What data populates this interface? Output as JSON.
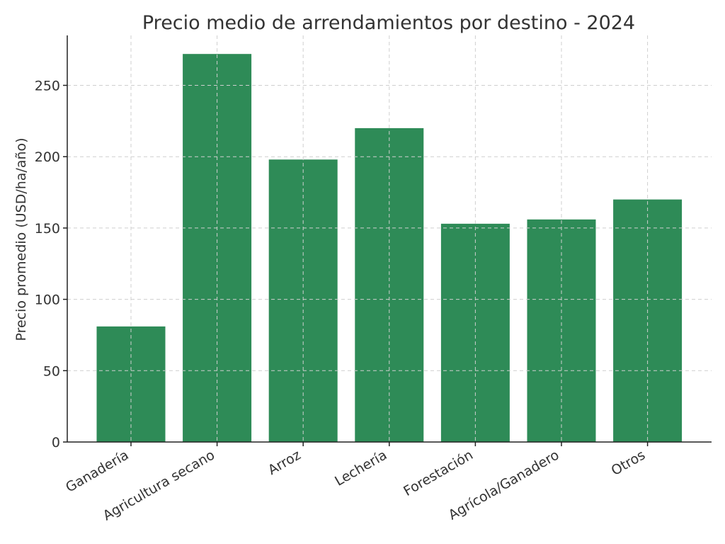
{
  "chart_data": {
    "type": "bar",
    "title": "Precio medio de arrendamientos por destino - 2024",
    "xlabel": "",
    "ylabel": "Precio promedio (USD/ha/año)",
    "categories": [
      "Ganadería",
      "Agricultura secano",
      "Arroz",
      "Lechería",
      "Forestación",
      "Agrícola/Ganadero",
      "Otros"
    ],
    "values": [
      81,
      272,
      198,
      220,
      153,
      156,
      170
    ],
    "ylim": [
      0,
      285
    ],
    "yticks": [
      0,
      50,
      100,
      150,
      200,
      250
    ],
    "grid": true,
    "bar_color": "#2e8b57"
  }
}
